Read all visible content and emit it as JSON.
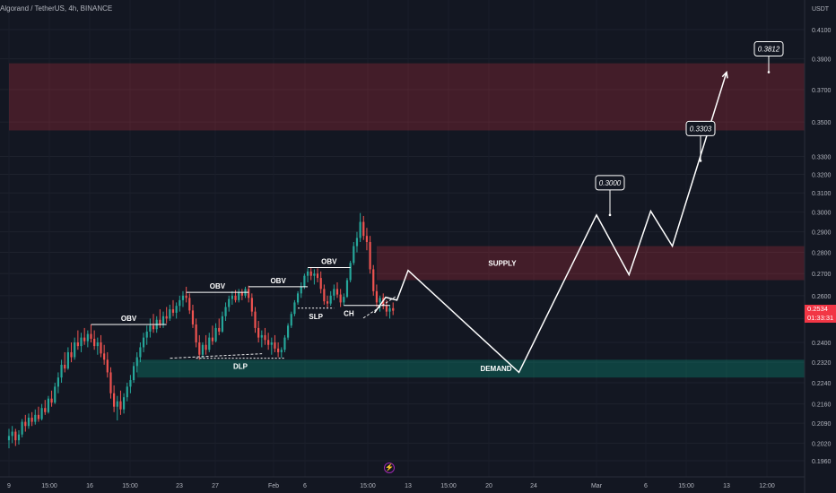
{
  "header": {
    "title": "Algorand / TetherUS, 4h, BINANCE"
  },
  "price_axis": {
    "unit": "USDT",
    "current_price": "0.2534",
    "countdown": "01:33:31",
    "badge_color": "#f23645"
  },
  "icons": {
    "event_marker": "lightning-icon"
  },
  "chart_data": {
    "type": "candlestick",
    "title": "Algorand / TetherUS, 4h, BINANCE",
    "yscale": "log",
    "ylim": [
      0.192,
      0.425
    ],
    "y_ticks": [
      "0.4100",
      "0.3900",
      "0.3700",
      "0.3500",
      "0.3300",
      "0.3200",
      "0.3100",
      "0.3000",
      "0.2900",
      "0.2800",
      "0.2700",
      "0.2600",
      "0.2500",
      "0.2400",
      "0.2320",
      "0.2240",
      "0.2160",
      "0.2090",
      "0.2020",
      "0.1960"
    ],
    "x_ticks": [
      "9",
      "15:00",
      "16",
      "15:00",
      "23",
      "27",
      "Feb",
      "6",
      "15:00",
      "13",
      "15:00",
      "20",
      "24",
      "Mar",
      "6",
      "15:00",
      "13",
      "12:00"
    ],
    "colors": {
      "up": "#26a69a",
      "down": "#ef5350",
      "projection": "#ffffff",
      "supply_zone": "#f23645",
      "demand_zone": "#089981"
    },
    "zones": [
      {
        "label": "",
        "from_price": 0.345,
        "to_price": 0.387,
        "from_bar": 0,
        "to_bar": "end",
        "color": "#f23645"
      },
      {
        "label": "SUPPLY",
        "from_price": 0.267,
        "to_price": 0.283,
        "from_bar": 112,
        "to_bar": "end",
        "color": "#f23645"
      },
      {
        "label": "DEMAND",
        "from_price": 0.226,
        "to_price": 0.233,
        "from_bar": 39,
        "to_bar": "end",
        "color": "#089981"
      }
    ],
    "annotations": [
      {
        "label": "OBV",
        "price": 0.2475,
        "bar_start": 25,
        "bar_end": 48
      },
      {
        "label": "OBV",
        "price": 0.2615,
        "bar_start": 54,
        "bar_end": 73
      },
      {
        "label": "OBV",
        "price": 0.264,
        "bar_start": 73,
        "bar_end": 91
      },
      {
        "label": "OBV",
        "price": 0.2728,
        "bar_start": 91,
        "bar_end": 104
      },
      {
        "label": "DLP",
        "price": 0.2336,
        "bar_start": 57,
        "bar_end": 84
      },
      {
        "label": "SLP",
        "price": 0.2545,
        "bar_start": 88,
        "bar_end": 99
      },
      {
        "label": "CH",
        "price": 0.2557,
        "bar_start": 102,
        "bar_end": 116
      }
    ],
    "price_callouts": [
      {
        "label": "0.3000",
        "price": 0.2985
      },
      {
        "label": "0.3303",
        "price": 0.3275
      },
      {
        "label": "0.3812",
        "price": 0.3812
      }
    ],
    "projection_path": [
      {
        "date": "Feb 10",
        "price": 0.2525
      },
      {
        "date": "Feb 11",
        "price": 0.2593
      },
      {
        "date": "Feb 12",
        "price": 0.258
      },
      {
        "date": "Feb 13",
        "price": 0.2715
      },
      {
        "date": "Feb 23",
        "price": 0.228
      },
      {
        "date": "Mar 1",
        "price": 0.2985
      },
      {
        "date": "Mar 4",
        "price": 0.2695
      },
      {
        "date": "Mar 6",
        "price": 0.3005
      },
      {
        "date": "Mar 8",
        "price": 0.283
      },
      {
        "date": "Mar 13",
        "price": 0.3812
      }
    ],
    "dashed_trendlines": [
      {
        "from": {
          "date": "Jan 23",
          "price": 0.2336
        },
        "to": {
          "date": "Jan 31",
          "price": 0.2354
        }
      },
      {
        "from": {
          "date": "Feb 9",
          "price": 0.2502
        },
        "to": {
          "date": "Feb 12",
          "price": 0.26
        }
      }
    ],
    "ohlc": [
      [
        0.203,
        0.207,
        0.2002,
        0.2045
      ],
      [
        0.2045,
        0.208,
        0.202,
        0.206
      ],
      [
        0.206,
        0.207,
        0.201,
        0.203
      ],
      [
        0.203,
        0.2065,
        0.2015,
        0.205
      ],
      [
        0.205,
        0.2105,
        0.204,
        0.2095
      ],
      [
        0.2095,
        0.212,
        0.206,
        0.208
      ],
      [
        0.208,
        0.2125,
        0.207,
        0.211
      ],
      [
        0.211,
        0.213,
        0.208,
        0.2095
      ],
      [
        0.2095,
        0.214,
        0.2085,
        0.212
      ],
      [
        0.212,
        0.215,
        0.2095,
        0.2105
      ],
      [
        0.2105,
        0.216,
        0.21,
        0.2145
      ],
      [
        0.2145,
        0.2175,
        0.212,
        0.213
      ],
      [
        0.213,
        0.219,
        0.2125,
        0.218
      ],
      [
        0.218,
        0.221,
        0.215,
        0.2165
      ],
      [
        0.2165,
        0.224,
        0.216,
        0.2225
      ],
      [
        0.2225,
        0.228,
        0.22,
        0.226
      ],
      [
        0.226,
        0.233,
        0.224,
        0.231
      ],
      [
        0.231,
        0.236,
        0.228,
        0.2295
      ],
      [
        0.2295,
        0.238,
        0.229,
        0.236
      ],
      [
        0.236,
        0.24,
        0.232,
        0.234
      ],
      [
        0.234,
        0.242,
        0.233,
        0.24
      ],
      [
        0.24,
        0.245,
        0.237,
        0.2385
      ],
      [
        0.2385,
        0.244,
        0.236,
        0.242
      ],
      [
        0.242,
        0.246,
        0.239,
        0.2405
      ],
      [
        0.2405,
        0.245,
        0.238,
        0.2435
      ],
      [
        0.2435,
        0.2475,
        0.24,
        0.2415
      ],
      [
        0.2415,
        0.245,
        0.237,
        0.2385
      ],
      [
        0.2385,
        0.242,
        0.235,
        0.24
      ],
      [
        0.24,
        0.243,
        0.234,
        0.2355
      ],
      [
        0.2355,
        0.239,
        0.231,
        0.233
      ],
      [
        0.233,
        0.236,
        0.226,
        0.228
      ],
      [
        0.228,
        0.23,
        0.218,
        0.22
      ],
      [
        0.22,
        0.223,
        0.213,
        0.215
      ],
      [
        0.215,
        0.219,
        0.21,
        0.217
      ],
      [
        0.217,
        0.221,
        0.212,
        0.214
      ],
      [
        0.214,
        0.22,
        0.2125,
        0.2185
      ],
      [
        0.2185,
        0.224,
        0.217,
        0.2225
      ],
      [
        0.2225,
        0.227,
        0.22,
        0.225
      ],
      [
        0.225,
        0.232,
        0.224,
        0.2305
      ],
      [
        0.2305,
        0.236,
        0.228,
        0.234
      ],
      [
        0.234,
        0.24,
        0.232,
        0.238
      ],
      [
        0.238,
        0.244,
        0.236,
        0.242
      ],
      [
        0.242,
        0.247,
        0.239,
        0.2445
      ],
      [
        0.2445,
        0.25,
        0.242,
        0.247
      ],
      [
        0.247,
        0.252,
        0.244,
        0.2455
      ],
      [
        0.2455,
        0.251,
        0.244,
        0.2495
      ],
      [
        0.2495,
        0.254,
        0.246,
        0.2475
      ],
      [
        0.2475,
        0.253,
        0.246,
        0.251
      ],
      [
        0.251,
        0.255,
        0.248,
        0.25
      ],
      [
        0.25,
        0.256,
        0.249,
        0.254
      ],
      [
        0.254,
        0.258,
        0.251,
        0.2525
      ],
      [
        0.2525,
        0.257,
        0.25,
        0.2555
      ],
      [
        0.2555,
        0.26,
        0.253,
        0.258
      ],
      [
        0.258,
        0.262,
        0.255,
        0.26
      ],
      [
        0.26,
        0.264,
        0.257,
        0.259
      ],
      [
        0.259,
        0.261,
        0.252,
        0.2535
      ],
      [
        0.2535,
        0.256,
        0.246,
        0.2475
      ],
      [
        0.2475,
        0.25,
        0.238,
        0.24
      ],
      [
        0.24,
        0.243,
        0.233,
        0.235
      ],
      [
        0.235,
        0.24,
        0.2335,
        0.239
      ],
      [
        0.239,
        0.243,
        0.235,
        0.237
      ],
      [
        0.237,
        0.244,
        0.236,
        0.242
      ],
      [
        0.242,
        0.247,
        0.239,
        0.2405
      ],
      [
        0.2405,
        0.248,
        0.24,
        0.246
      ],
      [
        0.246,
        0.25,
        0.243,
        0.2445
      ],
      [
        0.2445,
        0.253,
        0.244,
        0.251
      ],
      [
        0.251,
        0.257,
        0.249,
        0.255
      ],
      [
        0.255,
        0.26,
        0.253,
        0.2585
      ],
      [
        0.2585,
        0.262,
        0.256,
        0.26
      ],
      [
        0.26,
        0.2625,
        0.257,
        0.258
      ],
      [
        0.258,
        0.263,
        0.257,
        0.2615
      ],
      [
        0.2615,
        0.263,
        0.258,
        0.26
      ],
      [
        0.26,
        0.264,
        0.259,
        0.263
      ],
      [
        0.263,
        0.2645,
        0.257,
        0.259
      ],
      [
        0.259,
        0.261,
        0.251,
        0.253
      ],
      [
        0.253,
        0.255,
        0.244,
        0.246
      ],
      [
        0.246,
        0.249,
        0.24,
        0.242
      ],
      [
        0.242,
        0.245,
        0.238,
        0.243
      ],
      [
        0.243,
        0.246,
        0.239,
        0.241
      ],
      [
        0.241,
        0.244,
        0.237,
        0.239
      ],
      [
        0.239,
        0.242,
        0.235,
        0.24
      ],
      [
        0.24,
        0.243,
        0.236,
        0.2375
      ],
      [
        0.2375,
        0.24,
        0.234,
        0.236
      ],
      [
        0.236,
        0.238,
        0.2338,
        0.237
      ],
      [
        0.237,
        0.243,
        0.236,
        0.242
      ],
      [
        0.242,
        0.248,
        0.241,
        0.247
      ],
      [
        0.247,
        0.253,
        0.246,
        0.252
      ],
      [
        0.252,
        0.258,
        0.251,
        0.257
      ],
      [
        0.257,
        0.262,
        0.256,
        0.261
      ],
      [
        0.261,
        0.266,
        0.259,
        0.264
      ],
      [
        0.264,
        0.27,
        0.263,
        0.269
      ],
      [
        0.269,
        0.2725,
        0.266,
        0.271
      ],
      [
        0.271,
        0.273,
        0.267,
        0.269
      ],
      [
        0.269,
        0.272,
        0.265,
        0.27
      ],
      [
        0.27,
        0.2725,
        0.266,
        0.268
      ],
      [
        0.268,
        0.271,
        0.261,
        0.263
      ],
      [
        0.263,
        0.265,
        0.256,
        0.2575
      ],
      [
        0.2575,
        0.26,
        0.2548,
        0.2565
      ],
      [
        0.2565,
        0.262,
        0.2555,
        0.26
      ],
      [
        0.26,
        0.265,
        0.258,
        0.263
      ],
      [
        0.263,
        0.266,
        0.259,
        0.2605
      ],
      [
        0.2605,
        0.263,
        0.255,
        0.257
      ],
      [
        0.257,
        0.261,
        0.2556,
        0.2595
      ],
      [
        0.2595,
        0.268,
        0.259,
        0.267
      ],
      [
        0.267,
        0.276,
        0.266,
        0.275
      ],
      [
        0.275,
        0.285,
        0.274,
        0.283
      ],
      [
        0.283,
        0.29,
        0.28,
        0.287
      ],
      [
        0.287,
        0.2995,
        0.285,
        0.295
      ],
      [
        0.295,
        0.298,
        0.286,
        0.288
      ],
      [
        0.288,
        0.292,
        0.281,
        0.285
      ],
      [
        0.285,
        0.288,
        0.27,
        0.272
      ],
      [
        0.272,
        0.274,
        0.26,
        0.262
      ],
      [
        0.262,
        0.265,
        0.255,
        0.257
      ],
      [
        0.257,
        0.26,
        0.253,
        0.259
      ],
      [
        0.259,
        0.261,
        0.254,
        0.2555
      ],
      [
        0.2555,
        0.258,
        0.251,
        0.253
      ],
      [
        0.253,
        0.256,
        0.25,
        0.2545
      ],
      [
        0.2545,
        0.257,
        0.2515,
        0.2534
      ]
    ]
  }
}
